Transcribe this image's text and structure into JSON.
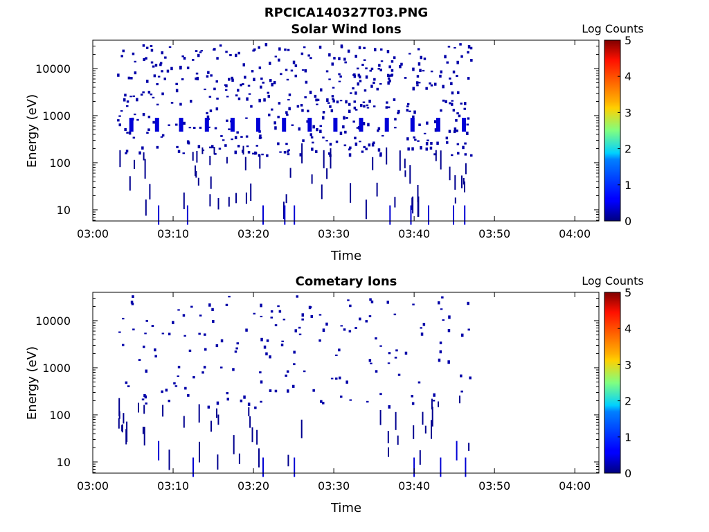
{
  "figure_title": "RPCICA140327T03.PNG",
  "chart_data": [
    {
      "type": "heatmap",
      "title": "Solar Wind Ions",
      "xlabel": "Time",
      "ylabel": "Energy (eV)",
      "x_scale": "time",
      "xlim": [
        "03:00",
        "04:03"
      ],
      "x_ticks": [
        "03:00",
        "03:10",
        "03:20",
        "03:30",
        "03:40",
        "03:50",
        "04:00"
      ],
      "y_scale": "log",
      "ylim": [
        5.8,
        40000
      ],
      "y_ticks": [
        10,
        100,
        1000,
        10000
      ],
      "y_tick_labels": [
        "10",
        "100",
        "1000",
        "10000"
      ],
      "colorbar": {
        "label": "Log Counts",
        "min": 0,
        "max": 5,
        "ticks": [
          0,
          1,
          2,
          3,
          4,
          5
        ],
        "colormap": "jet"
      },
      "data_time_range": [
        "03:03",
        "03:47"
      ],
      "cells": [
        {
          "time": "03:04.8",
          "energy_eV": 640,
          "log_counts": 0.2
        },
        {
          "time": "03:08.0",
          "energy_eV": 640,
          "log_counts": 0.2
        },
        {
          "time": "03:11.0",
          "energy_eV": 640,
          "log_counts": 0.2
        },
        {
          "time": "03:14.2",
          "energy_eV": 640,
          "log_counts": 0.2
        },
        {
          "time": "03:17.4",
          "energy_eV": 640,
          "log_counts": 0.2
        },
        {
          "time": "03:20.6",
          "energy_eV": 640,
          "log_counts": 0.2
        },
        {
          "time": "03:23.8",
          "energy_eV": 640,
          "log_counts": 0.2
        },
        {
          "time": "03:27.0",
          "energy_eV": 640,
          "log_counts": 0.2
        },
        {
          "time": "03:30.2",
          "energy_eV": 640,
          "log_counts": 0.2
        },
        {
          "time": "03:33.4",
          "energy_eV": 640,
          "log_counts": 0.2
        },
        {
          "time": "03:36.6",
          "energy_eV": 640,
          "log_counts": 0.2
        },
        {
          "time": "03:39.8",
          "energy_eV": 640,
          "log_counts": 0.2
        },
        {
          "time": "03:43.0",
          "energy_eV": 640,
          "log_counts": 0.2
        },
        {
          "time": "03:46.2",
          "energy_eV": 640,
          "log_counts": 0.2
        },
        {
          "time": "03:08.2",
          "energy_eV": 8,
          "log_counts": 0.1
        },
        {
          "time": "03:11.8",
          "energy_eV": 8,
          "log_counts": 0.1
        },
        {
          "time": "03:21.2",
          "energy_eV": 8,
          "log_counts": 0.1
        },
        {
          "time": "03:23.9",
          "energy_eV": 8,
          "log_counts": 0.1
        },
        {
          "time": "03:25.1",
          "energy_eV": 8,
          "log_counts": 0.1
        },
        {
          "time": "03:37.0",
          "energy_eV": 8,
          "log_counts": 0.1
        },
        {
          "time": "03:39.6",
          "energy_eV": 8,
          "log_counts": 0.1
        },
        {
          "time": "03:41.8",
          "energy_eV": 8,
          "log_counts": 0.1
        },
        {
          "time": "03:44.9",
          "energy_eV": 8,
          "log_counts": 0.1
        },
        {
          "time": "03:46.3",
          "energy_eV": 8,
          "log_counts": 0.1
        }
      ]
    },
    {
      "type": "heatmap",
      "title": "Cometary Ions",
      "xlabel": "Time",
      "ylabel": "Energy (eV)",
      "x_scale": "time",
      "xlim": [
        "03:00",
        "04:03"
      ],
      "x_ticks": [
        "03:00",
        "03:10",
        "03:20",
        "03:30",
        "03:40",
        "03:50",
        "04:00"
      ],
      "y_scale": "log",
      "ylim": [
        5.8,
        40000
      ],
      "y_ticks": [
        10,
        100,
        1000,
        10000
      ],
      "y_tick_labels": [
        "10",
        "100",
        "1000",
        "10000"
      ],
      "colorbar": {
        "label": "Log Counts",
        "min": 0,
        "max": 5,
        "ticks": [
          0,
          1,
          2,
          3,
          4,
          5
        ],
        "colormap": "jet"
      },
      "data_time_range": [
        "03:03",
        "03:47"
      ],
      "cells": [
        {
          "time": "03:08.2",
          "energy_eV": 18,
          "log_counts": 0.1
        },
        {
          "time": "03:12.5",
          "energy_eV": 8,
          "log_counts": 0.1
        },
        {
          "time": "03:21.2",
          "energy_eV": 8,
          "log_counts": 0.1
        },
        {
          "time": "03:25.1",
          "energy_eV": 8,
          "log_counts": 0.1
        },
        {
          "time": "03:40.0",
          "energy_eV": 8,
          "log_counts": 0.1
        },
        {
          "time": "03:43.3",
          "energy_eV": 8,
          "log_counts": 0.1
        },
        {
          "time": "03:45.3",
          "energy_eV": 18,
          "log_counts": 0.2
        },
        {
          "time": "03:46.4",
          "energy_eV": 8,
          "log_counts": 0.1
        }
      ]
    }
  ]
}
